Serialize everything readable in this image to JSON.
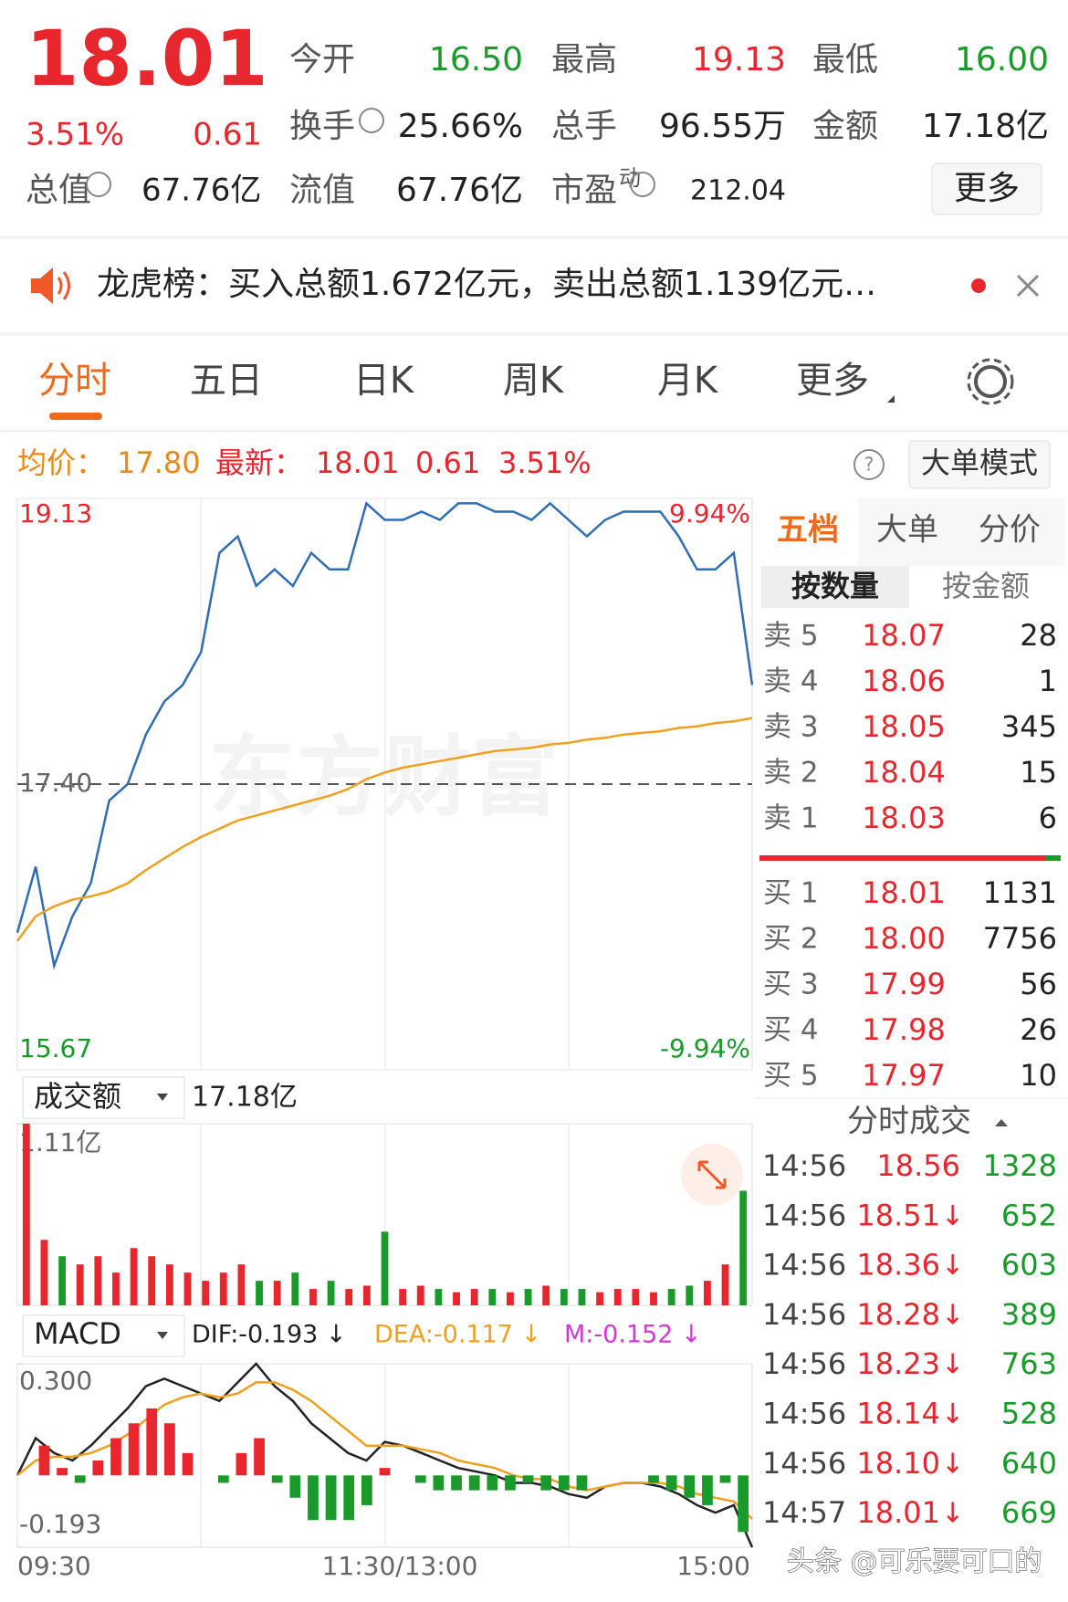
{
  "header": {
    "price": "18.01",
    "change_pct": "3.51%",
    "change": "0.61",
    "more": "更多",
    "stats": [
      {
        "label": "今开",
        "value": "16.50"
      },
      {
        "label": "最高",
        "value": "19.13"
      },
      {
        "label": "最低",
        "value": "16.00"
      },
      {
        "label": "换手",
        "value": "25.66%"
      },
      {
        "label": "总手",
        "value": "96.55万"
      },
      {
        "label": "金额",
        "value": "17.18亿"
      },
      {
        "label": "总值",
        "value": "67.76亿"
      },
      {
        "label": "流值",
        "value": "67.76亿"
      },
      {
        "label": "市盈",
        "sup": "动",
        "value": "212.04"
      }
    ]
  },
  "notice": "龙虎榜：买入总额1.672亿元，卖出总额1.139亿元…",
  "tabs": [
    "分时",
    "五日",
    "日K",
    "周K",
    "月K",
    "更多"
  ],
  "info_bar": {
    "avg_label": "均价：",
    "avg": "17.80",
    "latest_label": "最新：",
    "latest": "18.01",
    "change": "0.61",
    "change_pct": "3.51%",
    "mode": "大单模式"
  },
  "price_chart": {
    "type": "line",
    "watermark": "东方财富",
    "ylim": [
      15.67,
      19.13
    ],
    "yticks": [
      19.13,
      {
        "value": 17.4,
        "label": "17.40"
      },
      15.67
    ],
    "pct_labels": [
      "9.94%",
      "-9.94%"
    ],
    "series": [
      {
        "color": "#2f6db5",
        "values": [
          16.5,
          16.9,
          16.3,
          16.6,
          16.8,
          17.3,
          17.4,
          17.7,
          17.9,
          18.0,
          18.2,
          18.8,
          18.9,
          18.6,
          18.7,
          18.6,
          18.8,
          18.7,
          18.7,
          19.1,
          19.0,
          19.0,
          19.05,
          19.0,
          19.1,
          19.1,
          19.05,
          19.05,
          19.0,
          19.1,
          19.0,
          18.9,
          19.0,
          19.05,
          19.05,
          19.05,
          18.9,
          18.7,
          18.7,
          18.8,
          18.0
        ]
      },
      {
        "color": "#f0a020",
        "values": [
          16.45,
          16.6,
          16.66,
          16.7,
          16.72,
          16.75,
          16.8,
          16.88,
          16.95,
          17.02,
          17.08,
          17.13,
          17.18,
          17.21,
          17.24,
          17.27,
          17.3,
          17.33,
          17.37,
          17.43,
          17.47,
          17.5,
          17.52,
          17.54,
          17.56,
          17.58,
          17.6,
          17.61,
          17.62,
          17.64,
          17.65,
          17.67,
          17.68,
          17.7,
          17.71,
          17.72,
          17.74,
          17.75,
          17.77,
          17.78,
          17.8
        ]
      }
    ]
  },
  "volume_chart": {
    "type": "bar",
    "label": "成交额",
    "total": "17.18亿",
    "ylim": [
      0,
      1.11
    ],
    "yticks": [
      {
        "value": 1.11,
        "label": "1.11亿"
      }
    ],
    "up_color": "#e8262d",
    "down_color": "#1a9a2a",
    "values": [
      1.11,
      0.4,
      0.3,
      0.25,
      0.3,
      0.2,
      0.35,
      0.3,
      0.25,
      0.2,
      0.15,
      0.2,
      0.25,
      0.15,
      0.15,
      0.2,
      0.1,
      0.15,
      0.1,
      0.12,
      0.45,
      0.1,
      0.12,
      0.1,
      0.08,
      0.1,
      0.1,
      0.08,
      0.1,
      0.12,
      0.1,
      0.1,
      0.08,
      0.1,
      0.1,
      0.08,
      0.1,
      0.12,
      0.15,
      0.25,
      0.7
    ]
  },
  "macd_chart": {
    "type": "macd",
    "label": "MACD",
    "ylim": [
      -0.193,
      0.3
    ],
    "yticks": [
      {
        "value": 0.3,
        "label": "0.300"
      },
      -0.193
    ],
    "up_color": "#e8262d",
    "down_color": "#1a9a2a",
    "series": [
      {
        "name": "DIF:-0.193 ↓",
        "color": "#222222",
        "values": [
          0.0,
          0.1,
          0.06,
          0.04,
          0.08,
          0.13,
          0.18,
          0.24,
          0.26,
          0.24,
          0.22,
          0.2,
          0.25,
          0.3,
          0.24,
          0.2,
          0.14,
          0.1,
          0.06,
          0.04,
          0.09,
          0.08,
          0.06,
          0.04,
          0.02,
          0.01,
          0.0,
          -0.02,
          -0.02,
          -0.03,
          -0.05,
          -0.06,
          -0.03,
          -0.02,
          -0.02,
          -0.03,
          -0.05,
          -0.08,
          -0.1,
          -0.08,
          -0.193
        ]
      },
      {
        "name": "DEA:-0.117 ↓",
        "color": "#f0a020",
        "values": [
          0.0,
          0.04,
          0.05,
          0.05,
          0.06,
          0.08,
          0.11,
          0.15,
          0.19,
          0.21,
          0.22,
          0.21,
          0.22,
          0.25,
          0.25,
          0.23,
          0.2,
          0.16,
          0.12,
          0.08,
          0.08,
          0.08,
          0.07,
          0.06,
          0.04,
          0.03,
          0.02,
          0.0,
          -0.01,
          -0.01,
          -0.03,
          -0.04,
          -0.03,
          -0.02,
          -0.02,
          -0.02,
          -0.03,
          -0.05,
          -0.06,
          -0.07,
          -0.117
        ]
      },
      {
        "name": "M:-0.152 ↓",
        "color": "#d03ad0",
        "style": "bar",
        "values": [
          0,
          0.08,
          0.02,
          -0.02,
          0.04,
          0.1,
          0.14,
          0.18,
          0.14,
          0.06,
          0,
          -0.02,
          0.06,
          0.1,
          -0.02,
          -0.06,
          -0.12,
          -0.12,
          -0.12,
          -0.08,
          0.02,
          0,
          -0.02,
          -0.04,
          -0.04,
          -0.04,
          -0.04,
          -0.04,
          -0.02,
          -0.04,
          -0.04,
          -0.04,
          0,
          0,
          0,
          -0.02,
          -0.04,
          -0.06,
          -0.08,
          -0.02,
          -0.152
        ]
      }
    ]
  },
  "time_axis": [
    "09:30",
    "11:30/13:00",
    "15:00"
  ],
  "order_book": {
    "tabs": [
      "五档",
      "大单",
      "分价"
    ],
    "modes": [
      "按数量",
      "按金额"
    ],
    "asks": [
      {
        "label": "卖 5",
        "price": "18.07",
        "volume": "28"
      },
      {
        "label": "卖 4",
        "price": "18.06",
        "volume": "1"
      },
      {
        "label": "卖 3",
        "price": "18.05",
        "volume": "345"
      },
      {
        "label": "卖 2",
        "price": "18.04",
        "volume": "15"
      },
      {
        "label": "卖 1",
        "price": "18.03",
        "volume": "6"
      }
    ],
    "bids": [
      {
        "label": "买 1",
        "price": "18.01",
        "volume": "1131"
      },
      {
        "label": "买 2",
        "price": "18.00",
        "volume": "7756"
      },
      {
        "label": "买 3",
        "price": "17.99",
        "volume": "56"
      },
      {
        "label": "买 4",
        "price": "17.98",
        "volume": "26"
      },
      {
        "label": "买 5",
        "price": "17.97",
        "volume": "10"
      }
    ]
  },
  "trades": {
    "title": "分时成交",
    "rows": [
      {
        "time": "14:56",
        "price": "18.56",
        "volume": "1328"
      },
      {
        "time": "14:56",
        "price": "18.51",
        "dir": "↓",
        "volume": "652"
      },
      {
        "time": "14:56",
        "price": "18.36",
        "dir": "↓",
        "volume": "603"
      },
      {
        "time": "14:56",
        "price": "18.28",
        "dir": "↓",
        "volume": "389"
      },
      {
        "time": "14:56",
        "price": "18.23",
        "dir": "↓",
        "volume": "763"
      },
      {
        "time": "14:56",
        "price": "18.14",
        "dir": "↓",
        "volume": "528"
      },
      {
        "time": "14:56",
        "price": "18.10",
        "dir": "↓",
        "volume": "640"
      },
      {
        "time": "14:57",
        "price": "18.01",
        "dir": "↓",
        "volume": "669"
      }
    ]
  },
  "watermark": "头条 @可乐要可口的"
}
